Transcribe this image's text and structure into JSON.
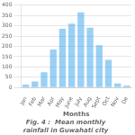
{
  "chart_data": {
    "type": "bar",
    "title": "Fig. 4 :  Mean monthly rainfall in Guwahati city",
    "xlabel": "Months",
    "categories": [
      "Jan",
      "Feb",
      "Mar",
      "Apr",
      "May",
      "June",
      "July",
      "Aug",
      "Sept",
      "Oct",
      "Nov",
      "De"
    ],
    "values": [
      15,
      30,
      75,
      185,
      285,
      310,
      365,
      290,
      205,
      135,
      20,
      10
    ],
    "ylim": [
      0,
      400
    ],
    "yticks": [
      0,
      50,
      100,
      150,
      200,
      250,
      300,
      350,
      400
    ],
    "grid": true
  }
}
